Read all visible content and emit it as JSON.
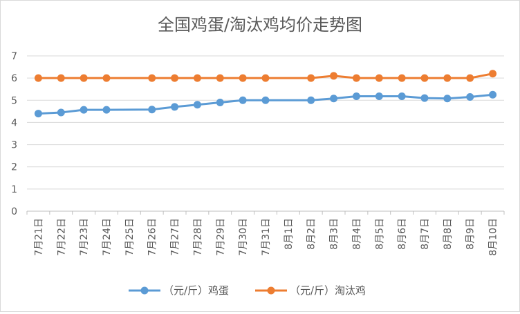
{
  "chart_data": {
    "type": "line",
    "title": "全国鸡蛋/淘汰鸡均价走势图",
    "categories": [
      "7月21日",
      "7月22日",
      "7月23日",
      "7月24日",
      "7月25日",
      "7月26日",
      "7月27日",
      "7月28日",
      "7月29日",
      "7月30日",
      "7月31日",
      "8月1日",
      "8月2日",
      "8月3日",
      "8月4日",
      "8月5日",
      "8月6日",
      "8月7日",
      "8月8日",
      "8月9日",
      "8月10日"
    ],
    "ylim": [
      0,
      7
    ],
    "yticks": [
      0,
      1,
      2,
      3,
      4,
      5,
      6,
      7
    ],
    "grid": true,
    "legend_position": "bottom",
    "series": [
      {
        "name": "（元/斤）鸡蛋",
        "color": "#5b9bd5",
        "values": [
          4.4,
          4.45,
          4.57,
          4.57,
          null,
          4.58,
          4.7,
          4.8,
          4.9,
          5.0,
          5.0,
          null,
          5.0,
          5.08,
          5.18,
          5.18,
          5.18,
          5.1,
          5.08,
          5.15,
          5.25
        ]
      },
      {
        "name": "（元/斤）淘汰鸡",
        "color": "#ed7d31",
        "values": [
          6.0,
          6.0,
          6.0,
          6.0,
          null,
          6.0,
          6.0,
          6.0,
          6.0,
          6.0,
          6.0,
          null,
          6.0,
          6.1,
          6.0,
          6.0,
          6.0,
          6.0,
          6.0,
          6.0,
          6.2
        ]
      }
    ]
  }
}
